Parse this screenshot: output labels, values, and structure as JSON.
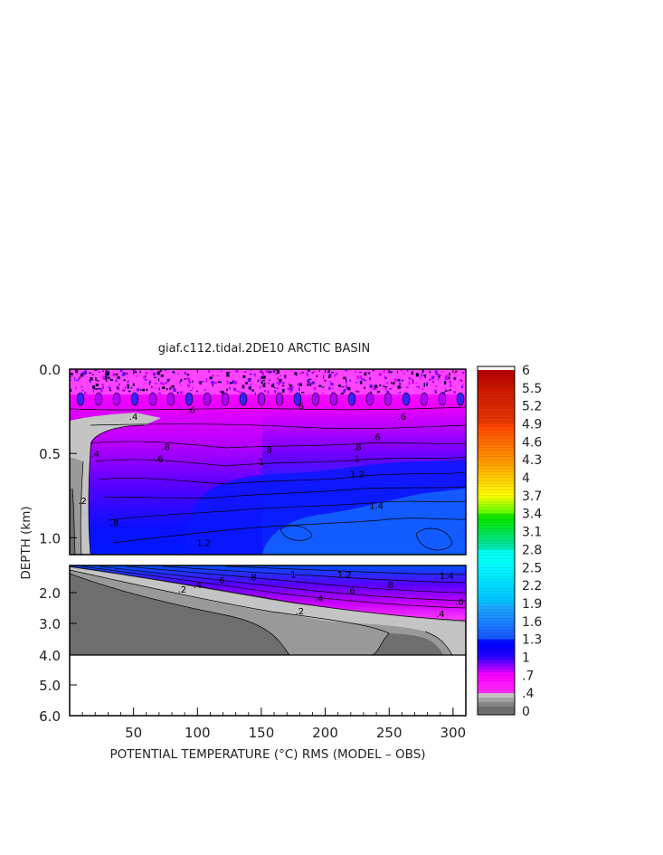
{
  "chart_data": {
    "type": "heatmap",
    "title": "giaf.c112.tidal.2DE10 ARCTIC BASIN",
    "xlabel": "POTENTIAL TEMPERATURE (°C) RMS (MODEL – OBS)",
    "ylabel": "DEPTH (km)",
    "xlim": [
      0,
      310
    ],
    "x_ticks": [
      50,
      100,
      150,
      200,
      250,
      300
    ],
    "y_ticks_top": [
      "0.0",
      "0.5",
      "1.0"
    ],
    "y_ticks_bottom": [
      "2.0",
      "3.0",
      "4.0",
      "5.0",
      "6.0"
    ],
    "top_panel_depth_range_km": [
      0,
      1.1
    ],
    "bottom_panel_depth_range_km": [
      1.1,
      6.0
    ],
    "data_bottom_depth_km": 4.0,
    "contour_labels_top": [
      {
        "text": ".4",
        "x": 50,
        "y": 0.3
      },
      {
        "text": ".6",
        "x": 95,
        "y": 0.26
      },
      {
        "text": ".6",
        "x": 180,
        "y": 0.24
      },
      {
        "text": ".6",
        "x": 260,
        "y": 0.3
      },
      {
        "text": ".6",
        "x": 240,
        "y": 0.42
      },
      {
        "text": ".6",
        "x": 70,
        "y": 0.55
      },
      {
        "text": ".8",
        "x": 75,
        "y": 0.48
      },
      {
        "text": ".8",
        "x": 155,
        "y": 0.5
      },
      {
        "text": ".8",
        "x": 225,
        "y": 0.48
      },
      {
        "text": "1",
        "x": 150,
        "y": 0.57
      },
      {
        "text": "1",
        "x": 225,
        "y": 0.55
      },
      {
        "text": "1.2",
        "x": 225,
        "y": 0.64
      },
      {
        "text": "1.4",
        "x": 240,
        "y": 0.83
      },
      {
        "text": "1.2",
        "x": 105,
        "y": 1.05
      },
      {
        "text": ".2",
        "x": 10,
        "y": 0.8
      },
      {
        "text": ".4",
        "x": 20,
        "y": 0.52
      },
      {
        "text": ".8",
        "x": 35,
        "y": 0.93
      }
    ],
    "contour_labels_bottom": [
      {
        "text": ".2",
        "x": 88,
        "y": 2.0
      },
      {
        "text": ".4",
        "x": 100,
        "y": 1.85
      },
      {
        "text": ".6",
        "x": 118,
        "y": 1.7
      },
      {
        "text": ".8",
        "x": 143,
        "y": 1.6
      },
      {
        "text": "1",
        "x": 175,
        "y": 1.5
      },
      {
        "text": "1.2",
        "x": 215,
        "y": 1.5
      },
      {
        "text": ".2",
        "x": 180,
        "y": 2.7
      },
      {
        "text": ".4",
        "x": 195,
        "y": 2.3
      },
      {
        "text": ".6",
        "x": 220,
        "y": 2.05
      },
      {
        "text": ".8",
        "x": 250,
        "y": 1.85
      },
      {
        "text": "1.4",
        "x": 295,
        "y": 1.55
      },
      {
        "text": ".6",
        "x": 305,
        "y": 2.4
      },
      {
        "text": ".4",
        "x": 290,
        "y": 2.8
      }
    ],
    "colorbar": {
      "min": 0,
      "max": 6,
      "labels": [
        "6",
        "5.5",
        "5.2",
        "4.9",
        "4.6",
        "4.3",
        "4",
        "3.7",
        "3.4",
        "3.1",
        "2.8",
        "2.5",
        "2.2",
        "1.9",
        "1.6",
        "1.3",
        "1",
        ".7",
        ".4",
        "0"
      ],
      "label_values": [
        6,
        5.5,
        5.2,
        4.9,
        4.6,
        4.3,
        4,
        3.7,
        3.4,
        3.1,
        2.8,
        2.5,
        2.2,
        1.9,
        1.6,
        1.3,
        1,
        0.7,
        0.4,
        0
      ]
    },
    "colors": {
      "gray_dark": "#6e6e6e",
      "gray_mid": "#999999",
      "gray_light": "#c4c4c4",
      "magenta": "#ff00ff",
      "purple": "#8a00ee",
      "blue": "#0000ff",
      "sky": "#1a88ff"
    }
  }
}
